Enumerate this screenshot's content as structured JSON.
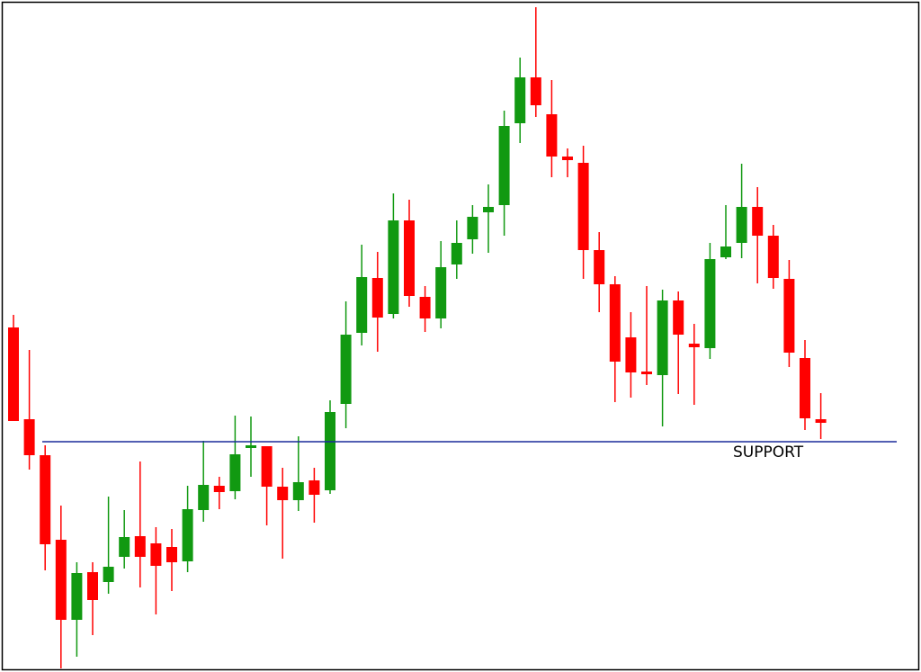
{
  "chart_data": {
    "type": "candlestick",
    "open": [
      383,
      281,
      241,
      147,
      58,
      111,
      100,
      128,
      151,
      143,
      139,
      123,
      180,
      207,
      201,
      249,
      251,
      206,
      191,
      213,
      202,
      298,
      377,
      438,
      398,
      502,
      417,
      393,
      453,
      481,
      511,
      519,
      610,
      661,
      620,
      573,
      566,
      469,
      431,
      372,
      334,
      330,
      413,
      365,
      360,
      461,
      477,
      517,
      485,
      437,
      349,
      281
    ],
    "high": [
      397,
      358,
      252,
      185,
      122,
      122,
      195,
      180,
      234,
      161,
      159,
      207,
      257,
      217,
      285,
      284,
      251,
      227,
      262,
      227,
      302,
      412,
      475,
      467,
      532,
      525,
      429,
      479,
      502,
      519,
      542,
      624,
      683,
      739,
      658,
      582,
      585,
      489,
      440,
      400,
      429,
      425,
      423,
      387,
      477,
      519,
      565,
      539,
      497,
      458,
      369,
      310
    ],
    "low": [
      279,
      225,
      113,
      4,
      17,
      41,
      87,
      115,
      94,
      64,
      90,
      111,
      167,
      181,
      192,
      217,
      163,
      126,
      179,
      166,
      198,
      271,
      363,
      356,
      393,
      406,
      378,
      382,
      437,
      465,
      466,
      485,
      588,
      617,
      550,
      550,
      437,
      400,
      300,
      305,
      319,
      273,
      309,
      297,
      348,
      459,
      460,
      432,
      426,
      339,
      269,
      259
    ],
    "close": [
      279,
      241,
      142,
      58,
      110,
      80,
      117,
      150,
      128,
      118,
      122,
      181,
      208,
      200,
      242,
      252,
      206,
      191,
      211,
      197,
      289,
      375,
      439,
      394,
      502,
      418,
      393,
      450,
      477,
      506,
      517,
      607,
      661,
      630,
      573,
      569,
      469,
      431,
      345,
      333,
      332,
      413,
      375,
      361,
      459,
      473,
      517,
      485,
      438,
      355,
      282,
      277
    ],
    "up_color": "#119911",
    "down_color": "#ff0000",
    "ylim": [
      0,
      747
    ],
    "support": {
      "value": 256,
      "label": "SUPPORT",
      "color": "#1a2a9a"
    }
  }
}
